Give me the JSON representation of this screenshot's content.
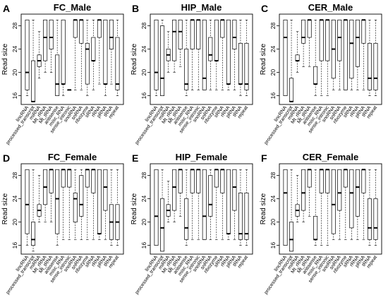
{
  "chart_data": [
    {
      "letter": "A",
      "title": "FC_Male",
      "type": "box",
      "ylabel": "Read size",
      "ylim": [
        14.5,
        30
      ],
      "yticks": [
        16,
        20,
        24,
        28
      ],
      "categories": [
        "lincRNA",
        "processed_transcript",
        "miRNA",
        "Mt_rRNA",
        "Mt_tRNA",
        "antisense",
        "misc_RNA",
        "sense_intronic",
        "snoRNA",
        "snRNA",
        "ribozyme",
        "sRNA",
        "rRNA",
        "pRNA",
        "tRNA",
        "repeat"
      ],
      "boxes": [
        {
          "min": 16,
          "q1": 17,
          "median": 20,
          "q3": 29,
          "max": 29
        },
        {
          "min": 15,
          "q1": 15,
          "median": 15,
          "q3": 22,
          "max": 29
        },
        {
          "min": 19,
          "q1": 21,
          "median": 22,
          "q3": 23,
          "max": 27
        },
        {
          "min": 20,
          "q1": 22,
          "median": 26,
          "q3": 29,
          "max": 29
        },
        {
          "min": 20,
          "q1": 24,
          "median": 26,
          "q3": 29,
          "max": 29
        },
        {
          "min": 16,
          "q1": 16,
          "median": 18,
          "q3": 23,
          "max": 29
        },
        {
          "min": 16,
          "q1": 18,
          "median": 18,
          "q3": 29,
          "max": 29
        },
        {
          "min": 17,
          "q1": 17,
          "median": 17,
          "q3": 17,
          "max": 17
        },
        {
          "min": 17,
          "q1": 26,
          "median": 29,
          "q3": 29,
          "max": 29
        },
        {
          "min": 17,
          "q1": 25,
          "median": 29,
          "q3": 29,
          "max": 29
        },
        {
          "min": 16,
          "q1": 18,
          "median": 24,
          "q3": 25,
          "max": 29
        },
        {
          "min": 17,
          "q1": 22,
          "median": 22,
          "q3": 26,
          "max": 29
        },
        {
          "min": 18,
          "q1": 26,
          "median": 29,
          "q3": 29,
          "max": 29
        },
        {
          "min": 16,
          "q1": 18,
          "median": 18,
          "q3": 29,
          "max": 29
        },
        {
          "min": 18,
          "q1": 24,
          "median": 26,
          "q3": 29,
          "max": 29
        },
        {
          "min": 16,
          "q1": 17,
          "median": 18,
          "q3": 26,
          "max": 29
        }
      ]
    },
    {
      "letter": "B",
      "title": "HIP_Male",
      "type": "box",
      "ylabel": "Read size",
      "ylim": [
        14.5,
        30
      ],
      "yticks": [
        16,
        20,
        24,
        28
      ],
      "categories": [
        "lincRNA",
        "processed_transcript",
        "miRNA",
        "Mt_rRNA",
        "Mt_tRNA",
        "antisense",
        "misc_RNA",
        "sense_intronic",
        "snoRNA",
        "snRNA",
        "ribozyme",
        "sRNA",
        "rRNA",
        "pRNA",
        "tRNA",
        "repeat"
      ],
      "boxes": [
        {
          "min": 16,
          "q1": 17,
          "median": 20,
          "q3": 29,
          "max": 29
        },
        {
          "min": 16,
          "q1": 16,
          "median": 19,
          "q3": 28,
          "max": 29
        },
        {
          "min": 20,
          "q1": 22,
          "median": 23,
          "q3": 24,
          "max": 27
        },
        {
          "min": 20,
          "q1": 22,
          "median": 27,
          "q3": 29,
          "max": 29
        },
        {
          "min": 21,
          "q1": 24,
          "median": 27,
          "q3": 29,
          "max": 29
        },
        {
          "min": 16,
          "q1": 17,
          "median": 18,
          "q3": 24,
          "max": 29
        },
        {
          "min": 17,
          "q1": 24,
          "median": 29,
          "q3": 29,
          "max": 29
        },
        {
          "min": 17,
          "q1": 24,
          "median": 29,
          "q3": 29,
          "max": 29
        },
        {
          "min": 17,
          "q1": 17,
          "median": 19,
          "q3": 29,
          "max": 29
        },
        {
          "min": 17,
          "q1": 22,
          "median": 23,
          "q3": 26,
          "max": 29
        },
        {
          "min": 17,
          "q1": 22,
          "median": 22,
          "q3": 29,
          "max": 29
        },
        {
          "min": 17,
          "q1": 26,
          "median": 29,
          "q3": 29,
          "max": 29
        },
        {
          "min": 17,
          "q1": 18,
          "median": 18,
          "q3": 29,
          "max": 29
        },
        {
          "min": 17,
          "q1": 24,
          "median": 26,
          "q3": 29,
          "max": 29
        },
        {
          "min": 16,
          "q1": 18,
          "median": 18,
          "q3": 25,
          "max": 29
        },
        {
          "min": 16,
          "q1": 17,
          "median": 18,
          "q3": 25,
          "max": 29
        }
      ]
    },
    {
      "letter": "C",
      "title": "CER_Male",
      "type": "box",
      "ylabel": "Read size",
      "ylim": [
        14.5,
        30
      ],
      "yticks": [
        16,
        20,
        24,
        28
      ],
      "categories": [
        "lincRNA",
        "processed_transcript",
        "miRNA",
        "Mt_rRNA",
        "Mt_tRNA",
        "antisense",
        "misc_RNA",
        "sense_intronic",
        "snoRNA",
        "snRNA",
        "ribozyme",
        "sRNA",
        "rRNA",
        "pRNA",
        "tRNA",
        "repeat"
      ],
      "boxes": [
        {
          "min": 16,
          "q1": 16,
          "median": 26,
          "q3": 29,
          "max": 29
        },
        {
          "min": 15,
          "q1": 15,
          "median": 15,
          "q3": 19,
          "max": 29
        },
        {
          "min": 20,
          "q1": 22,
          "median": 22,
          "q3": 23,
          "max": 27
        },
        {
          "min": 21,
          "q1": 25,
          "median": 26,
          "q3": 29,
          "max": 29
        },
        {
          "min": 21,
          "q1": 26,
          "median": 29,
          "q3": 29,
          "max": 29
        },
        {
          "min": 16,
          "q1": 18,
          "median": 18,
          "q3": 21,
          "max": 29
        },
        {
          "min": 16,
          "q1": 22,
          "median": 29,
          "q3": 29,
          "max": 29
        },
        {
          "min": 16,
          "q1": 22,
          "median": 29,
          "q3": 29,
          "max": 29
        },
        {
          "min": 17,
          "q1": 19,
          "median": 24,
          "q3": 29,
          "max": 29
        },
        {
          "min": 17,
          "q1": 22,
          "median": 26,
          "q3": 29,
          "max": 29
        },
        {
          "min": 17,
          "q1": 17,
          "median": 29,
          "q3": 29,
          "max": 29
        },
        {
          "min": 17,
          "q1": 19,
          "median": 25,
          "q3": 29,
          "max": 29
        },
        {
          "min": 17,
          "q1": 21,
          "median": 26,
          "q3": 29,
          "max": 29
        },
        {
          "min": 17,
          "q1": 25,
          "median": 29,
          "q3": 29,
          "max": 29
        },
        {
          "min": 16,
          "q1": 17,
          "median": 19,
          "q3": 25,
          "max": 29
        },
        {
          "min": 16,
          "q1": 17,
          "median": 19,
          "q3": 25,
          "max": 29
        }
      ]
    },
    {
      "letter": "D",
      "title": "FC_Female",
      "type": "box",
      "ylabel": "Read size",
      "ylim": [
        14.5,
        30
      ],
      "yticks": [
        16,
        20,
        24,
        28
      ],
      "categories": [
        "lincRNA",
        "processed_transcript",
        "miRNA",
        "Mt_rRNA",
        "Mt_tRNA",
        "antisense",
        "misc_RNA",
        "sense_intronic",
        "snoRNA",
        "snRNA",
        "ribozyme",
        "sRNA",
        "rRNA",
        "pRNA",
        "tRNA",
        "repeat"
      ],
      "boxes": [
        {
          "min": 16,
          "q1": 18,
          "median": 23,
          "q3": 29,
          "max": 29
        },
        {
          "min": 15,
          "q1": 16,
          "median": 17,
          "q3": 20,
          "max": 29
        },
        {
          "min": 20,
          "q1": 21,
          "median": 22,
          "q3": 23,
          "max": 28
        },
        {
          "min": 20,
          "q1": 23,
          "median": 26,
          "q3": 29,
          "max": 29
        },
        {
          "min": 20,
          "q1": 25,
          "median": 29,
          "q3": 29,
          "max": 29
        },
        {
          "min": 16,
          "q1": 18,
          "median": 24,
          "q3": 29,
          "max": 29
        },
        {
          "min": 17,
          "q1": 26,
          "median": 29,
          "q3": 29,
          "max": 29
        },
        {
          "min": 17,
          "q1": 26,
          "median": 29,
          "q3": 29,
          "max": 29
        },
        {
          "min": 17,
          "q1": 20,
          "median": 24,
          "q3": 25,
          "max": 29
        },
        {
          "min": 17,
          "q1": 21,
          "median": 23,
          "q3": 28,
          "max": 29
        },
        {
          "min": 17,
          "q1": 26,
          "median": 29,
          "q3": 29,
          "max": 29
        },
        {
          "min": 17,
          "q1": 25,
          "median": 29,
          "q3": 29,
          "max": 29
        },
        {
          "min": 17,
          "q1": 18,
          "median": 18,
          "q3": 29,
          "max": 29
        },
        {
          "min": 17,
          "q1": 22,
          "median": 26,
          "q3": 29,
          "max": 29
        },
        {
          "min": 16,
          "q1": 17,
          "median": 20,
          "q3": 23,
          "max": 29
        },
        {
          "min": 16,
          "q1": 17,
          "median": 20,
          "q3": 23,
          "max": 29
        }
      ]
    },
    {
      "letter": "E",
      "title": "HIP_Female",
      "type": "box",
      "ylabel": "Read size",
      "ylim": [
        14.5,
        30
      ],
      "yticks": [
        16,
        20,
        24,
        28
      ],
      "categories": [
        "lincRNA",
        "processed_transcript",
        "miRNA",
        "Mt_rRNA",
        "Mt_tRNA",
        "antisense",
        "misc_RNA",
        "sense_intronic",
        "snoRNA",
        "snRNA",
        "ribozyme",
        "sRNA",
        "rRNA",
        "pRNA",
        "tRNA",
        "repeat"
      ],
      "boxes": [
        {
          "min": 16,
          "q1": 16,
          "median": 21,
          "q3": 29,
          "max": 29
        },
        {
          "min": 15,
          "q1": 15,
          "median": 19,
          "q3": 24,
          "max": 29
        },
        {
          "min": 20,
          "q1": 21,
          "median": 22,
          "q3": 23,
          "max": 27
        },
        {
          "min": 20,
          "q1": 22,
          "median": 26,
          "q3": 29,
          "max": 29
        },
        {
          "min": 21,
          "q1": 25,
          "median": 29,
          "q3": 29,
          "max": 29
        },
        {
          "min": 16,
          "q1": 17,
          "median": 19,
          "q3": 24,
          "max": 29
        },
        {
          "min": 17,
          "q1": 25,
          "median": 29,
          "q3": 29,
          "max": 29
        },
        {
          "min": 17,
          "q1": 25,
          "median": 29,
          "q3": 29,
          "max": 29
        },
        {
          "min": 17,
          "q1": 17,
          "median": 21,
          "q3": 29,
          "max": 29
        },
        {
          "min": 17,
          "q1": 21,
          "median": 23,
          "q3": 28,
          "max": 29
        },
        {
          "min": 17,
          "q1": 26,
          "median": 29,
          "q3": 29,
          "max": 29
        },
        {
          "min": 17,
          "q1": 25,
          "median": 29,
          "q3": 29,
          "max": 29
        },
        {
          "min": 17,
          "q1": 18,
          "median": 18,
          "q3": 29,
          "max": 29
        },
        {
          "min": 17,
          "q1": 22,
          "median": 26,
          "q3": 29,
          "max": 29
        },
        {
          "min": 16,
          "q1": 17,
          "median": 18,
          "q3": 25,
          "max": 29
        },
        {
          "min": 16,
          "q1": 17,
          "median": 18,
          "q3": 25,
          "max": 29
        }
      ]
    },
    {
      "letter": "F",
      "title": "CER_Female",
      "type": "box",
      "ylabel": "Read size",
      "ylim": [
        14.5,
        30
      ],
      "yticks": [
        16,
        20,
        24,
        28
      ],
      "categories": [
        "lincRNA",
        "processed_transcript",
        "miRNA",
        "Mt_rRNA",
        "Mt_tRNA",
        "antisense",
        "misc_RNA",
        "sense_intronic",
        "snoRNA",
        "snRNA",
        "ribozyme",
        "sRNA",
        "rRNA",
        "pRNA",
        "tRNA",
        "repeat"
      ],
      "boxes": [
        {
          "min": 16,
          "q1": 16,
          "median": 25,
          "q3": 29,
          "max": 29
        },
        {
          "min": 15,
          "q1": 15,
          "median": 17,
          "q3": 20,
          "max": 29
        },
        {
          "min": 20,
          "q1": 21,
          "median": 22,
          "q3": 23,
          "max": 28
        },
        {
          "min": 20,
          "q1": 22,
          "median": 25,
          "q3": 29,
          "max": 29
        },
        {
          "min": 21,
          "q1": 26,
          "median": 29,
          "q3": 29,
          "max": 29
        },
        {
          "min": 16,
          "q1": 17,
          "median": 17,
          "q3": 21,
          "max": 29
        },
        {
          "min": 16,
          "q1": 25,
          "median": 29,
          "q3": 29,
          "max": 29
        },
        {
          "min": 16,
          "q1": 25,
          "median": 29,
          "q3": 29,
          "max": 29
        },
        {
          "min": 17,
          "q1": 18,
          "median": 23,
          "q3": 29,
          "max": 29
        },
        {
          "min": 17,
          "q1": 22,
          "median": 25,
          "q3": 29,
          "max": 29
        },
        {
          "min": 17,
          "q1": 26,
          "median": 29,
          "q3": 29,
          "max": 29
        },
        {
          "min": 17,
          "q1": 19,
          "median": 25,
          "q3": 29,
          "max": 29
        },
        {
          "min": 17,
          "q1": 21,
          "median": 26,
          "q3": 29,
          "max": 29
        },
        {
          "min": 17,
          "q1": 25,
          "median": 29,
          "q3": 29,
          "max": 29
        },
        {
          "min": 16,
          "q1": 17,
          "median": 19,
          "q3": 24,
          "max": 29
        },
        {
          "min": 16,
          "q1": 17,
          "median": 19,
          "q3": 24,
          "max": 29
        }
      ]
    }
  ]
}
